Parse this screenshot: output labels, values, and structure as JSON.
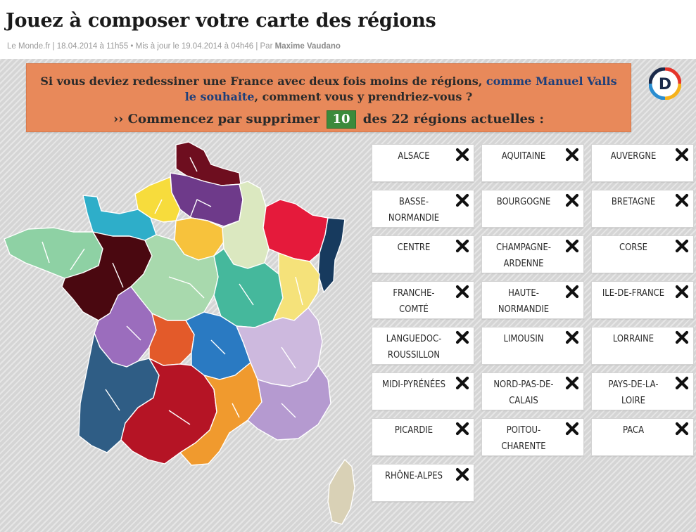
{
  "header": {
    "title": "Jouez à composer votre carte des régions",
    "meta": "Le Monde.fr | 18.04.2014 à 11h55 • Mis à jour le 19.04.2014 à 04h46 | Par ",
    "author": "Maxime Vaudano"
  },
  "banner": {
    "text_before": "Si vous deviez redessiner une France avec deux fois moins de régions, ",
    "link_text": "comme Manuel Valls le souhaite",
    "text_after": ", comment vous y prendriez-vous ?",
    "cta_before": "›› Commencez par supprimer ",
    "count": "10",
    "cta_after": " des 22 régions actuelles :"
  },
  "logo": {
    "letter": "D",
    "icon": "decodeurs-logo-icon"
  },
  "regions": [
    {
      "label": "ALSACE",
      "color": "#173a5e"
    },
    {
      "label": "AQUITAINE",
      "color": "#2f5d85"
    },
    {
      "label": "AUVERGNE",
      "color": "#e0592e"
    },
    {
      "label": "BASSE-NORMANDIE",
      "color": "#2eaec9"
    },
    {
      "label": "BOURGOGNE",
      "color": "#45b89c"
    },
    {
      "label": "BRETAGNE",
      "color": "#8ed1a4"
    },
    {
      "label": "CENTRE",
      "color": "#a8d9ad"
    },
    {
      "label": "CHAMPAGNE-ARDENNE",
      "color": "#dbe8c0"
    },
    {
      "label": "CORSE",
      "color": "#d9d1b6"
    },
    {
      "label": "FRANCHE-COMTÉ",
      "color": "#f5e27a"
    },
    {
      "label": "HAUTE-NORMANDIE",
      "color": "#f7dc3c"
    },
    {
      "label": "ILE-DE-FRANCE",
      "color": "#f7c23c"
    },
    {
      "label": "LANGUEDOC-ROUSSILLON",
      "color": "#f09a2e"
    },
    {
      "label": "LIMOUSIN",
      "color": "#e35a2a"
    },
    {
      "label": "LORRAINE",
      "color": "#e51a3b"
    },
    {
      "label": "MIDI-PYRÉNÉES",
      "color": "#b51425"
    },
    {
      "label": "NORD-PAS-DE-CALAIS",
      "color": "#6e0e1f"
    },
    {
      "label": "PAYS-DE-LA-LOIRE",
      "color": "#4a0810"
    },
    {
      "label": "PICARDIE",
      "color": "#6e3a8a"
    },
    {
      "label": "POITOU-CHARENTE",
      "color": "#9b6dbd"
    },
    {
      "label": "PACA",
      "color": "#b59ad0"
    },
    {
      "label": "RHÔNE-ALPES",
      "color": "#cdb9de"
    }
  ],
  "remove_icon": "close-x-icon"
}
